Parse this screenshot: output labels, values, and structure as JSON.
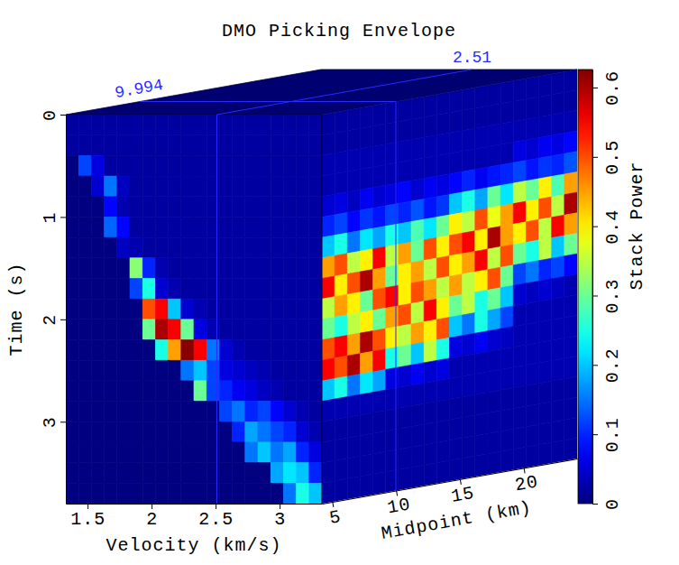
{
  "chart_data": {
    "type": "heatmap",
    "title": "DMO Picking Envelope",
    "y_label": "Time (s)",
    "ylim": [
      0,
      3.8
    ],
    "yticks": [
      0,
      1,
      2,
      3
    ],
    "y": [
      0.1,
      0.3,
      0.5,
      0.7,
      0.9,
      1.1,
      1.3,
      1.5,
      1.7,
      1.9,
      2.1,
      2.3,
      2.5,
      2.7,
      2.9,
      3.1,
      3.3,
      3.5,
      3.7
    ],
    "panels": [
      {
        "x_label": "Velocity (km/s)",
        "xlim": [
          1.33,
          3.33
        ],
        "xticks": [
          1.5,
          2,
          2.5,
          3
        ],
        "slice": 9.994,
        "x": [
          1.38,
          1.48,
          1.58,
          1.68,
          1.78,
          1.88,
          1.98,
          2.08,
          2.18,
          2.28,
          2.38,
          2.48,
          2.58,
          2.68,
          2.78,
          2.88,
          2.98,
          3.08,
          3.18,
          3.28
        ],
        "values": [
          [
            0.02,
            0.02,
            0.02,
            0.02,
            0.02,
            0.02,
            0.02,
            0.02,
            0.02,
            0.02,
            0.02,
            0.02,
            0.02,
            0.02,
            0.02,
            0.02,
            0.02,
            0.02,
            0.02,
            0.02
          ],
          [
            0.02,
            0.02,
            0.02,
            0.02,
            0.02,
            0.02,
            0.02,
            0.02,
            0.02,
            0.02,
            0.02,
            0.02,
            0.02,
            0.02,
            0.02,
            0.02,
            0.02,
            0.02,
            0.02,
            0.02
          ],
          [
            0,
            0.12,
            0.06,
            0.02,
            0.02,
            0.02,
            0.02,
            0.02,
            0.02,
            0.02,
            0.02,
            0.02,
            0.02,
            0.02,
            0.02,
            0.02,
            0.02,
            0.02,
            0.02,
            0.02
          ],
          [
            0,
            0,
            0.05,
            0.15,
            0.04,
            0.02,
            0.02,
            0.02,
            0.02,
            0.02,
            0.02,
            0.02,
            0.02,
            0.02,
            0.02,
            0.02,
            0.02,
            0.02,
            0.02,
            0.02
          ],
          [
            0,
            0,
            0,
            0.08,
            0.03,
            0.02,
            0.02,
            0.02,
            0.02,
            0.02,
            0.02,
            0.02,
            0.02,
            0.02,
            0.02,
            0.02,
            0.02,
            0.02,
            0.02,
            0.02
          ],
          [
            0,
            0,
            0,
            0.14,
            0.08,
            0.02,
            0.02,
            0.02,
            0.02,
            0.02,
            0.02,
            0.02,
            0.02,
            0.02,
            0.02,
            0.02,
            0.02,
            0.02,
            0.02,
            0.02
          ],
          [
            0,
            0,
            0,
            0,
            0.04,
            0.03,
            0.02,
            0.02,
            0.02,
            0.02,
            0.02,
            0.02,
            0.02,
            0.02,
            0.02,
            0.02,
            0.02,
            0.02,
            0.02,
            0.02
          ],
          [
            0,
            0,
            0,
            0,
            0,
            0.32,
            0.1,
            0.03,
            0.02,
            0.02,
            0.02,
            0.02,
            0.02,
            0.02,
            0.02,
            0.02,
            0.02,
            0.02,
            0.02,
            0.02
          ],
          [
            0,
            0,
            0,
            0,
            0,
            0.12,
            0.25,
            0.05,
            0.03,
            0.02,
            0.02,
            0.02,
            0.02,
            0.02,
            0.02,
            0.02,
            0.02,
            0.02,
            0.02,
            0.02
          ],
          [
            0,
            0,
            0,
            0,
            0,
            0,
            0.5,
            0.55,
            0.2,
            0.05,
            0.03,
            0.02,
            0.02,
            0.02,
            0.02,
            0.02,
            0.02,
            0.02,
            0.02,
            0.02
          ],
          [
            0,
            0,
            0,
            0,
            0,
            0,
            0.3,
            0.6,
            0.55,
            0.3,
            0.06,
            0.03,
            0.02,
            0.02,
            0.02,
            0.02,
            0.02,
            0.02,
            0.02,
            0.02
          ],
          [
            0,
            0,
            0,
            0,
            0,
            0,
            0,
            0.25,
            0.45,
            0.62,
            0.55,
            0.15,
            0.05,
            0.03,
            0.02,
            0.02,
            0.02,
            0.02,
            0.02,
            0.02
          ],
          [
            0,
            0,
            0,
            0,
            0,
            0,
            0,
            0,
            0,
            0.15,
            0.2,
            0.12,
            0.06,
            0.05,
            0.04,
            0.03,
            0.02,
            0.02,
            0.02,
            0.02
          ],
          [
            0,
            0,
            0,
            0,
            0,
            0,
            0,
            0,
            0,
            0,
            0.3,
            0.12,
            0.1,
            0.07,
            0.06,
            0.04,
            0.03,
            0.02,
            0.02,
            0.02
          ],
          [
            0,
            0,
            0,
            0,
            0,
            0,
            0,
            0,
            0,
            0,
            0,
            0,
            0.12,
            0.15,
            0.1,
            0.12,
            0.08,
            0.05,
            0.03,
            0.02
          ],
          [
            0,
            0,
            0,
            0,
            0,
            0,
            0,
            0,
            0,
            0,
            0,
            0,
            0,
            0.1,
            0.18,
            0.15,
            0.12,
            0.1,
            0.05,
            0.03
          ],
          [
            0,
            0,
            0,
            0,
            0,
            0,
            0,
            0,
            0,
            0,
            0,
            0,
            0,
            0,
            0.15,
            0.2,
            0.15,
            0.18,
            0.1,
            0.06
          ],
          [
            0,
            0,
            0,
            0,
            0,
            0,
            0,
            0,
            0,
            0,
            0,
            0,
            0,
            0,
            0,
            0,
            0.18,
            0.22,
            0.2,
            0.1
          ],
          [
            0,
            0,
            0,
            0,
            0,
            0,
            0,
            0,
            0,
            0,
            0,
            0,
            0,
            0,
            0,
            0,
            0,
            0.15,
            0.25,
            0.2
          ]
        ]
      },
      {
        "x_label": "Midpoint (km)",
        "xlim": [
          4.2,
          24.2
        ],
        "xticks": [
          5,
          10,
          15,
          20
        ],
        "slice": 2.51,
        "x": [
          4.7,
          5.7,
          6.7,
          7.7,
          8.7,
          9.7,
          10.7,
          11.7,
          12.7,
          13.7,
          14.7,
          15.7,
          16.7,
          17.7,
          18.7,
          19.7,
          20.7,
          21.7,
          22.7,
          23.7
        ],
        "values": [
          [
            0.02,
            0.02,
            0.02,
            0.02,
            0.02,
            0.02,
            0.02,
            0.02,
            0.02,
            0.02,
            0.02,
            0.02,
            0.02,
            0.02,
            0.02,
            0.02,
            0.02,
            0.02,
            0.02,
            0.02
          ],
          [
            0.02,
            0.02,
            0.02,
            0.02,
            0.02,
            0.02,
            0.02,
            0.02,
            0.02,
            0.02,
            0.02,
            0.02,
            0.02,
            0.02,
            0.02,
            0.02,
            0.02,
            0.02,
            0.02,
            0.02
          ],
          [
            0.03,
            0.03,
            0.03,
            0.03,
            0.03,
            0.03,
            0.03,
            0.03,
            0.03,
            0.03,
            0.03,
            0.03,
            0.03,
            0.03,
            0.03,
            0.03,
            0.03,
            0.03,
            0.03,
            0.03
          ],
          [
            0.03,
            0.03,
            0.03,
            0.03,
            0.03,
            0.03,
            0.03,
            0.03,
            0.03,
            0.03,
            0.03,
            0.03,
            0.03,
            0.03,
            0.03,
            0.06,
            0.05,
            0.07,
            0.06,
            0.08
          ],
          [
            0.05,
            0.06,
            0.04,
            0.07,
            0.05,
            0.06,
            0.08,
            0.05,
            0.07,
            0.06,
            0.08,
            0.1,
            0.07,
            0.09,
            0.1,
            0.12,
            0.09,
            0.11,
            0.1,
            0.13
          ],
          [
            0.1,
            0.12,
            0.08,
            0.11,
            0.09,
            0.12,
            0.1,
            0.13,
            0.09,
            0.11,
            0.2,
            0.25,
            0.18,
            0.3,
            0.22,
            0.35,
            0.3,
            0.4,
            0.28,
            0.45
          ],
          [
            0.2,
            0.25,
            0.15,
            0.22,
            0.18,
            0.25,
            0.2,
            0.28,
            0.22,
            0.3,
            0.4,
            0.35,
            0.5,
            0.38,
            0.45,
            0.55,
            0.4,
            0.5,
            0.35,
            0.6
          ],
          [
            0.45,
            0.5,
            0.35,
            0.4,
            0.55,
            0.35,
            0.45,
            0.3,
            0.5,
            0.4,
            0.5,
            0.55,
            0.4,
            0.6,
            0.45,
            0.4,
            0.5,
            0.35,
            0.55,
            0.45
          ],
          [
            0.55,
            0.4,
            0.5,
            0.6,
            0.45,
            0.3,
            0.4,
            0.45,
            0.35,
            0.5,
            0.4,
            0.45,
            0.55,
            0.35,
            0.5,
            0.3,
            0.25,
            0.35,
            0.2,
            0.3
          ],
          [
            0.35,
            0.45,
            0.4,
            0.3,
            0.5,
            0.55,
            0.4,
            0.5,
            0.45,
            0.35,
            0.45,
            0.35,
            0.4,
            0.5,
            0.3,
            0.12,
            0.15,
            0.1,
            0.12,
            0.08
          ],
          [
            0.3,
            0.25,
            0.35,
            0.4,
            0.3,
            0.45,
            0.5,
            0.35,
            0.55,
            0.4,
            0.3,
            0.35,
            0.25,
            0.3,
            0.2,
            0.05,
            0.04,
            0.05,
            0.04,
            0.03
          ],
          [
            0.5,
            0.55,
            0.45,
            0.6,
            0.5,
            0.4,
            0.35,
            0.45,
            0.4,
            0.5,
            0.2,
            0.15,
            0.25,
            0.18,
            0.12,
            0.03,
            0.03,
            0.03,
            0.03,
            0.03
          ],
          [
            0.55,
            0.5,
            0.6,
            0.45,
            0.55,
            0.25,
            0.3,
            0.2,
            0.35,
            0.25,
            0.06,
            0.05,
            0.07,
            0.05,
            0.04,
            0.03,
            0.03,
            0.03,
            0.03,
            0.03
          ],
          [
            0.2,
            0.25,
            0.15,
            0.22,
            0.18,
            0.06,
            0.05,
            0.07,
            0.05,
            0.06,
            0.03,
            0.03,
            0.03,
            0.03,
            0.03,
            0.03,
            0.03,
            0.03,
            0.03,
            0.03
          ],
          [
            0.03,
            0.03,
            0.03,
            0.03,
            0.03,
            0.03,
            0.03,
            0.03,
            0.03,
            0.03,
            0.03,
            0.03,
            0.03,
            0.03,
            0.03,
            0.03,
            0.03,
            0.03,
            0.03,
            0.03
          ],
          [
            0.02,
            0.02,
            0.02,
            0.02,
            0.02,
            0.02,
            0.02,
            0.02,
            0.02,
            0.02,
            0.02,
            0.02,
            0.02,
            0.02,
            0.02,
            0.02,
            0.02,
            0.02,
            0.02,
            0.02
          ],
          [
            0.02,
            0.02,
            0.02,
            0.02,
            0.02,
            0.02,
            0.02,
            0.02,
            0.02,
            0.02,
            0.02,
            0.02,
            0.02,
            0.02,
            0.02,
            0.02,
            0.02,
            0.02,
            0.02,
            0.02
          ],
          [
            0.02,
            0.02,
            0.02,
            0.02,
            0.02,
            0.02,
            0.02,
            0.02,
            0.02,
            0.02,
            0.02,
            0.02,
            0.02,
            0.02,
            0.02,
            0.02,
            0.02,
            0.02,
            0.02,
            0.02
          ],
          [
            0.02,
            0.02,
            0.02,
            0.02,
            0.02,
            0.02,
            0.02,
            0.02,
            0.02,
            0.02,
            0.02,
            0.02,
            0.02,
            0.02,
            0.02,
            0.02,
            0.02,
            0.02,
            0.02,
            0.02
          ]
        ]
      }
    ],
    "colorbar": {
      "label": "Stack Power",
      "range": [
        0,
        0.626
      ],
      "ticks": [
        0,
        0.1,
        0.2,
        0.3,
        0.4,
        0.5,
        0.6
      ]
    }
  }
}
